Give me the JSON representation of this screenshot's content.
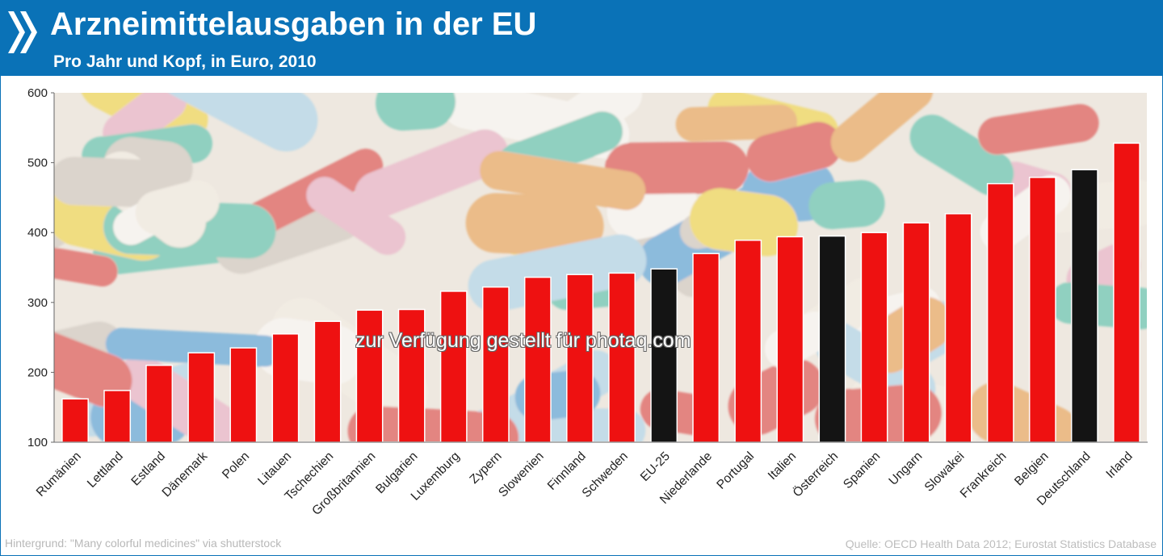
{
  "header": {
    "title": "Arzneimittelausgaben in der EU",
    "subtitle": "Pro Jahr und Kopf, in Euro, 2010"
  },
  "footer": {
    "background_credit": "Hintergrund: \"Many colorful medicines\" via shutterstock",
    "source": "Quelle: OECD Health Data 2012; Eurostat Statistics Database"
  },
  "watermark": "zur Verfügung gestellt für photaq.com",
  "colors": {
    "header_bg": "#0a72b7",
    "bar_default": "#ee1111",
    "bar_highlight": "#141414"
  },
  "chart_data": {
    "type": "bar",
    "title": "Arzneimittelausgaben in der EU",
    "subtitle": "Pro Jahr und Kopf, in Euro, 2010",
    "categories": [
      "Rumänien",
      "Lettland",
      "Estland",
      "Dänemark",
      "Polen",
      "Litauen",
      "Tschechien",
      "Großbritannien",
      "Bulgarien",
      "Luxemburg",
      "Zypern",
      "Slowenien",
      "Finnland",
      "Schweden",
      "EU-25",
      "Niederlande",
      "Portugal",
      "Italien",
      "Österreich",
      "Spanien",
      "Ungarn",
      "Slowakei",
      "Frankreich",
      "Belgien",
      "Deutschland",
      "Irland"
    ],
    "values": [
      162,
      174,
      210,
      228,
      235,
      255,
      273,
      289,
      290,
      316,
      322,
      336,
      340,
      342,
      348,
      370,
      389,
      394,
      395,
      400,
      414,
      427,
      470,
      479,
      490,
      528
    ],
    "highlighted": [
      "EU-25",
      "Österreich",
      "Deutschland"
    ],
    "ylim": [
      100,
      600
    ],
    "yticks": [
      100,
      200,
      300,
      400,
      500,
      600
    ],
    "xlabel": "",
    "ylabel": "",
    "grid": false,
    "legend": "none"
  }
}
